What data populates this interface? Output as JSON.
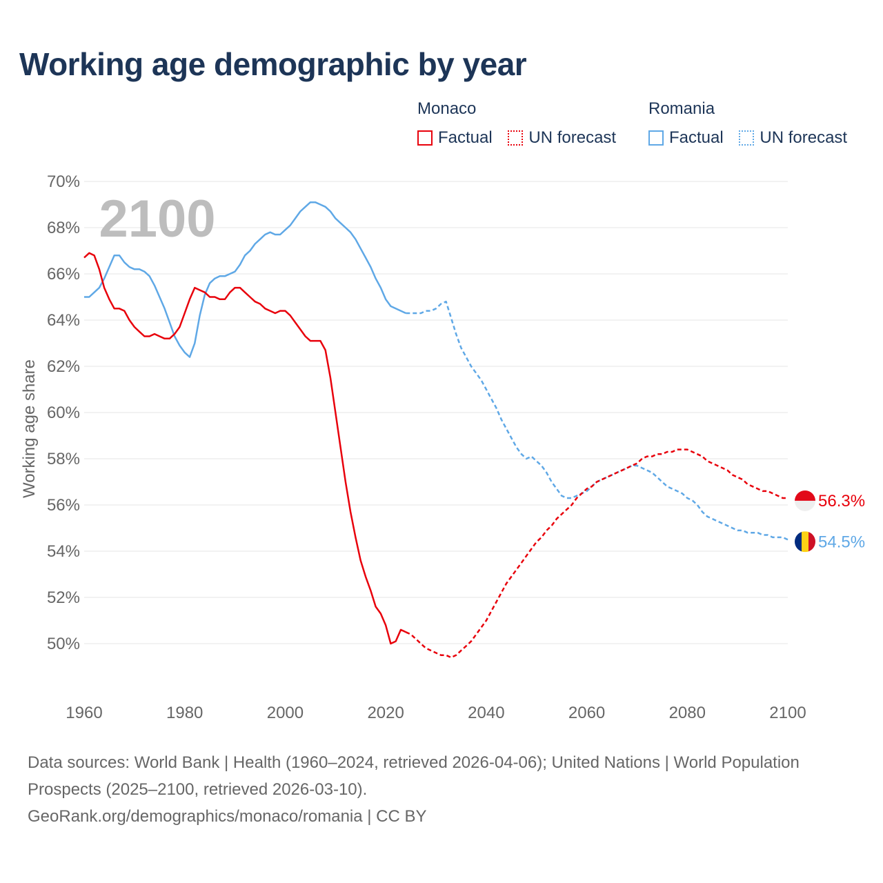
{
  "title": "Working age demographic by year",
  "year_watermark": "2100",
  "legend": {
    "groups": [
      {
        "name": "Monaco",
        "color": "#e8000b",
        "factual_label": "Factual",
        "forecast_label": "UN forecast"
      },
      {
        "name": "Romania",
        "color": "#5fa8e6",
        "factual_label": "Factual",
        "forecast_label": "UN forecast"
      }
    ]
  },
  "footer": {
    "line1": "Data sources: World Bank | Health (1960–2024, retrieved 2026-04-06); United Nations | World Population Prospects (2025–2100, retrieved 2026-03-10).",
    "line2": "GeoRank.org/demographics/monaco/romania | CC BY"
  },
  "chart_data": {
    "type": "line",
    "title": "Working age demographic by year",
    "xlabel": "",
    "ylabel": "Working age share",
    "xlim": [
      1960,
      2100
    ],
    "ylim": [
      48,
      70
    ],
    "x_ticks": [
      1960,
      1980,
      2000,
      2020,
      2040,
      2060,
      2080,
      2100
    ],
    "x_tick_labels": [
      "1960",
      "1980",
      "2000",
      "2020",
      "2040",
      "2060",
      "2080",
      "2100"
    ],
    "y_ticks": [
      50,
      52,
      54,
      56,
      58,
      60,
      62,
      64,
      66,
      68,
      70
    ],
    "y_tick_labels": [
      "50%",
      "52%",
      "54%",
      "56%",
      "58%",
      "60%",
      "62%",
      "64%",
      "66%",
      "68%",
      "70%"
    ],
    "grid": true,
    "series": [
      {
        "name": "Monaco",
        "color": "#e8000b",
        "end_label": "56.3%",
        "flag": "monaco",
        "factual": {
          "x": [
            1960,
            1961,
            1962,
            1963,
            1964,
            1965,
            1966,
            1967,
            1968,
            1969,
            1970,
            1971,
            1972,
            1973,
            1974,
            1975,
            1976,
            1977,
            1978,
            1979,
            1980,
            1981,
            1982,
            1983,
            1984,
            1985,
            1986,
            1987,
            1988,
            1989,
            1990,
            1991,
            1992,
            1993,
            1994,
            1995,
            1996,
            1997,
            1998,
            1999,
            2000,
            2001,
            2002,
            2003,
            2004,
            2005,
            2006,
            2007,
            2008,
            2009,
            2010,
            2011,
            2012,
            2013,
            2014,
            2015,
            2016,
            2017,
            2018,
            2019,
            2020,
            2021,
            2022,
            2023,
            2024
          ],
          "y": [
            66.7,
            66.9,
            66.8,
            66.2,
            65.4,
            64.9,
            64.5,
            64.5,
            64.4,
            64.0,
            63.7,
            63.5,
            63.3,
            63.3,
            63.4,
            63.3,
            63.2,
            63.2,
            63.4,
            63.7,
            64.3,
            64.9,
            65.4,
            65.3,
            65.2,
            65.0,
            65.0,
            64.9,
            64.9,
            65.2,
            65.4,
            65.4,
            65.2,
            65.0,
            64.8,
            64.7,
            64.5,
            64.4,
            64.3,
            64.4,
            64.4,
            64.2,
            63.9,
            63.6,
            63.3,
            63.1,
            63.1,
            63.1,
            62.7,
            61.5,
            60.0,
            58.5,
            57.0,
            55.7,
            54.6,
            53.6,
            52.9,
            52.3,
            51.6,
            51.3,
            50.8,
            50.0,
            50.1,
            50.6,
            50.5
          ]
        },
        "forecast": {
          "x": [
            2024,
            2025,
            2026,
            2027,
            2028,
            2029,
            2030,
            2031,
            2032,
            2033,
            2034,
            2035,
            2036,
            2037,
            2038,
            2039,
            2040,
            2041,
            2042,
            2043,
            2044,
            2045,
            2046,
            2047,
            2048,
            2049,
            2050,
            2051,
            2052,
            2053,
            2054,
            2055,
            2056,
            2057,
            2058,
            2059,
            2060,
            2061,
            2062,
            2063,
            2064,
            2065,
            2066,
            2067,
            2068,
            2069,
            2070,
            2071,
            2072,
            2073,
            2074,
            2075,
            2076,
            2077,
            2078,
            2079,
            2080,
            2081,
            2082,
            2083,
            2084,
            2085,
            2086,
            2087,
            2088,
            2089,
            2090,
            2091,
            2092,
            2093,
            2094,
            2095,
            2096,
            2097,
            2098,
            2099,
            2100
          ],
          "y": [
            50.5,
            50.4,
            50.2,
            50.0,
            49.8,
            49.7,
            49.6,
            49.5,
            49.5,
            49.4,
            49.5,
            49.7,
            49.9,
            50.1,
            50.4,
            50.7,
            51.0,
            51.4,
            51.8,
            52.2,
            52.6,
            52.9,
            53.2,
            53.5,
            53.8,
            54.1,
            54.4,
            54.6,
            54.9,
            55.1,
            55.4,
            55.6,
            55.8,
            56.0,
            56.3,
            56.5,
            56.7,
            56.8,
            57.0,
            57.1,
            57.2,
            57.3,
            57.4,
            57.5,
            57.6,
            57.7,
            57.8,
            58.0,
            58.1,
            58.1,
            58.2,
            58.2,
            58.3,
            58.3,
            58.4,
            58.4,
            58.4,
            58.3,
            58.2,
            58.1,
            57.9,
            57.8,
            57.7,
            57.6,
            57.5,
            57.3,
            57.2,
            57.1,
            56.9,
            56.8,
            56.7,
            56.6,
            56.6,
            56.5,
            56.4,
            56.3,
            56.3
          ]
        }
      },
      {
        "name": "Romania",
        "color": "#5fa8e6",
        "end_label": "54.5%",
        "flag": "romania",
        "factual": {
          "x": [
            1960,
            1961,
            1962,
            1963,
            1964,
            1965,
            1966,
            1967,
            1968,
            1969,
            1970,
            1971,
            1972,
            1973,
            1974,
            1975,
            1976,
            1977,
            1978,
            1979,
            1980,
            1981,
            1982,
            1983,
            1984,
            1985,
            1986,
            1987,
            1988,
            1989,
            1990,
            1991,
            1992,
            1993,
            1994,
            1995,
            1996,
            1997,
            1998,
            1999,
            2000,
            2001,
            2002,
            2003,
            2004,
            2005,
            2006,
            2007,
            2008,
            2009,
            2010,
            2011,
            2012,
            2013,
            2014,
            2015,
            2016,
            2017,
            2018,
            2019,
            2020,
            2021,
            2022,
            2023,
            2024
          ],
          "y": [
            65.0,
            65.0,
            65.2,
            65.4,
            65.8,
            66.3,
            66.8,
            66.8,
            66.5,
            66.3,
            66.2,
            66.2,
            66.1,
            65.9,
            65.5,
            65.0,
            64.5,
            63.9,
            63.3,
            62.9,
            62.6,
            62.4,
            63.0,
            64.2,
            65.1,
            65.6,
            65.8,
            65.9,
            65.9,
            66.0,
            66.1,
            66.4,
            66.8,
            67.0,
            67.3,
            67.5,
            67.7,
            67.8,
            67.7,
            67.7,
            67.9,
            68.1,
            68.4,
            68.7,
            68.9,
            69.1,
            69.1,
            69.0,
            68.9,
            68.7,
            68.4,
            68.2,
            68.0,
            67.8,
            67.5,
            67.1,
            66.7,
            66.3,
            65.8,
            65.4,
            64.9,
            64.6,
            64.5,
            64.4,
            64.3
          ]
        },
        "forecast": {
          "x": [
            2024,
            2025,
            2026,
            2027,
            2028,
            2029,
            2030,
            2031,
            2032,
            2033,
            2034,
            2035,
            2036,
            2037,
            2038,
            2039,
            2040,
            2041,
            2042,
            2043,
            2044,
            2045,
            2046,
            2047,
            2048,
            2049,
            2050,
            2051,
            2052,
            2053,
            2054,
            2055,
            2056,
            2057,
            2058,
            2059,
            2060,
            2061,
            2062,
            2063,
            2064,
            2065,
            2066,
            2067,
            2068,
            2069,
            2070,
            2071,
            2072,
            2073,
            2074,
            2075,
            2076,
            2077,
            2078,
            2079,
            2080,
            2081,
            2082,
            2083,
            2084,
            2085,
            2086,
            2087,
            2088,
            2089,
            2090,
            2091,
            2092,
            2093,
            2094,
            2095,
            2096,
            2097,
            2098,
            2099,
            2100
          ],
          "y": [
            64.3,
            64.3,
            64.3,
            64.3,
            64.4,
            64.4,
            64.5,
            64.7,
            64.8,
            64.1,
            63.4,
            62.8,
            62.4,
            62.0,
            61.7,
            61.4,
            61.0,
            60.6,
            60.2,
            59.7,
            59.3,
            58.9,
            58.5,
            58.2,
            58.0,
            58.1,
            57.9,
            57.7,
            57.4,
            57.0,
            56.7,
            56.4,
            56.3,
            56.3,
            56.4,
            56.5,
            56.6,
            56.8,
            57.0,
            57.1,
            57.2,
            57.3,
            57.4,
            57.5,
            57.6,
            57.7,
            57.7,
            57.6,
            57.5,
            57.4,
            57.2,
            57.0,
            56.8,
            56.7,
            56.6,
            56.5,
            56.3,
            56.2,
            56.0,
            55.7,
            55.5,
            55.4,
            55.3,
            55.2,
            55.1,
            55.0,
            54.9,
            54.9,
            54.8,
            54.8,
            54.8,
            54.7,
            54.7,
            54.6,
            54.6,
            54.6,
            54.5
          ]
        }
      }
    ]
  }
}
